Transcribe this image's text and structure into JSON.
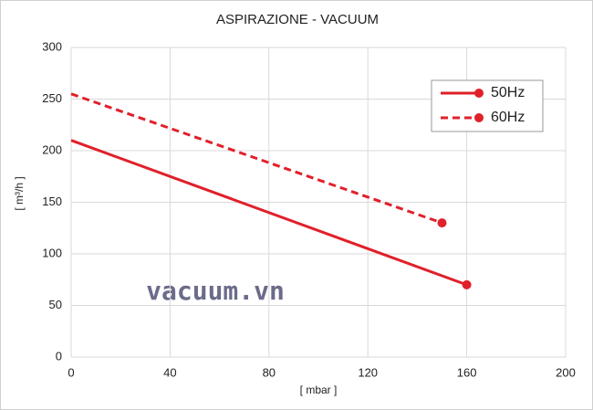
{
  "chart_data": {
    "type": "line",
    "title": "ASPIRAZIONE - VACUUM",
    "x_label": "[ mbar ]",
    "y_label": "[ m³/h ]",
    "annotation": "vacuum.vn",
    "series": [
      {
        "name": "50Hz",
        "color": "#e0202a",
        "dashed": false,
        "x": [
          0,
          160
        ],
        "values": [
          210,
          70
        ]
      },
      {
        "name": "60Hz",
        "color": "#e0202a",
        "dashed": true,
        "x": [
          0,
          150
        ],
        "values": [
          255,
          130
        ]
      }
    ],
    "xlim": [
      0,
      200
    ],
    "xticks": [
      0,
      40,
      80,
      120,
      160,
      200
    ],
    "ylim": [
      0,
      300
    ],
    "yticks": [
      0,
      50,
      100,
      150,
      200,
      250,
      300
    ],
    "grid": true,
    "legend": "upper-right"
  }
}
